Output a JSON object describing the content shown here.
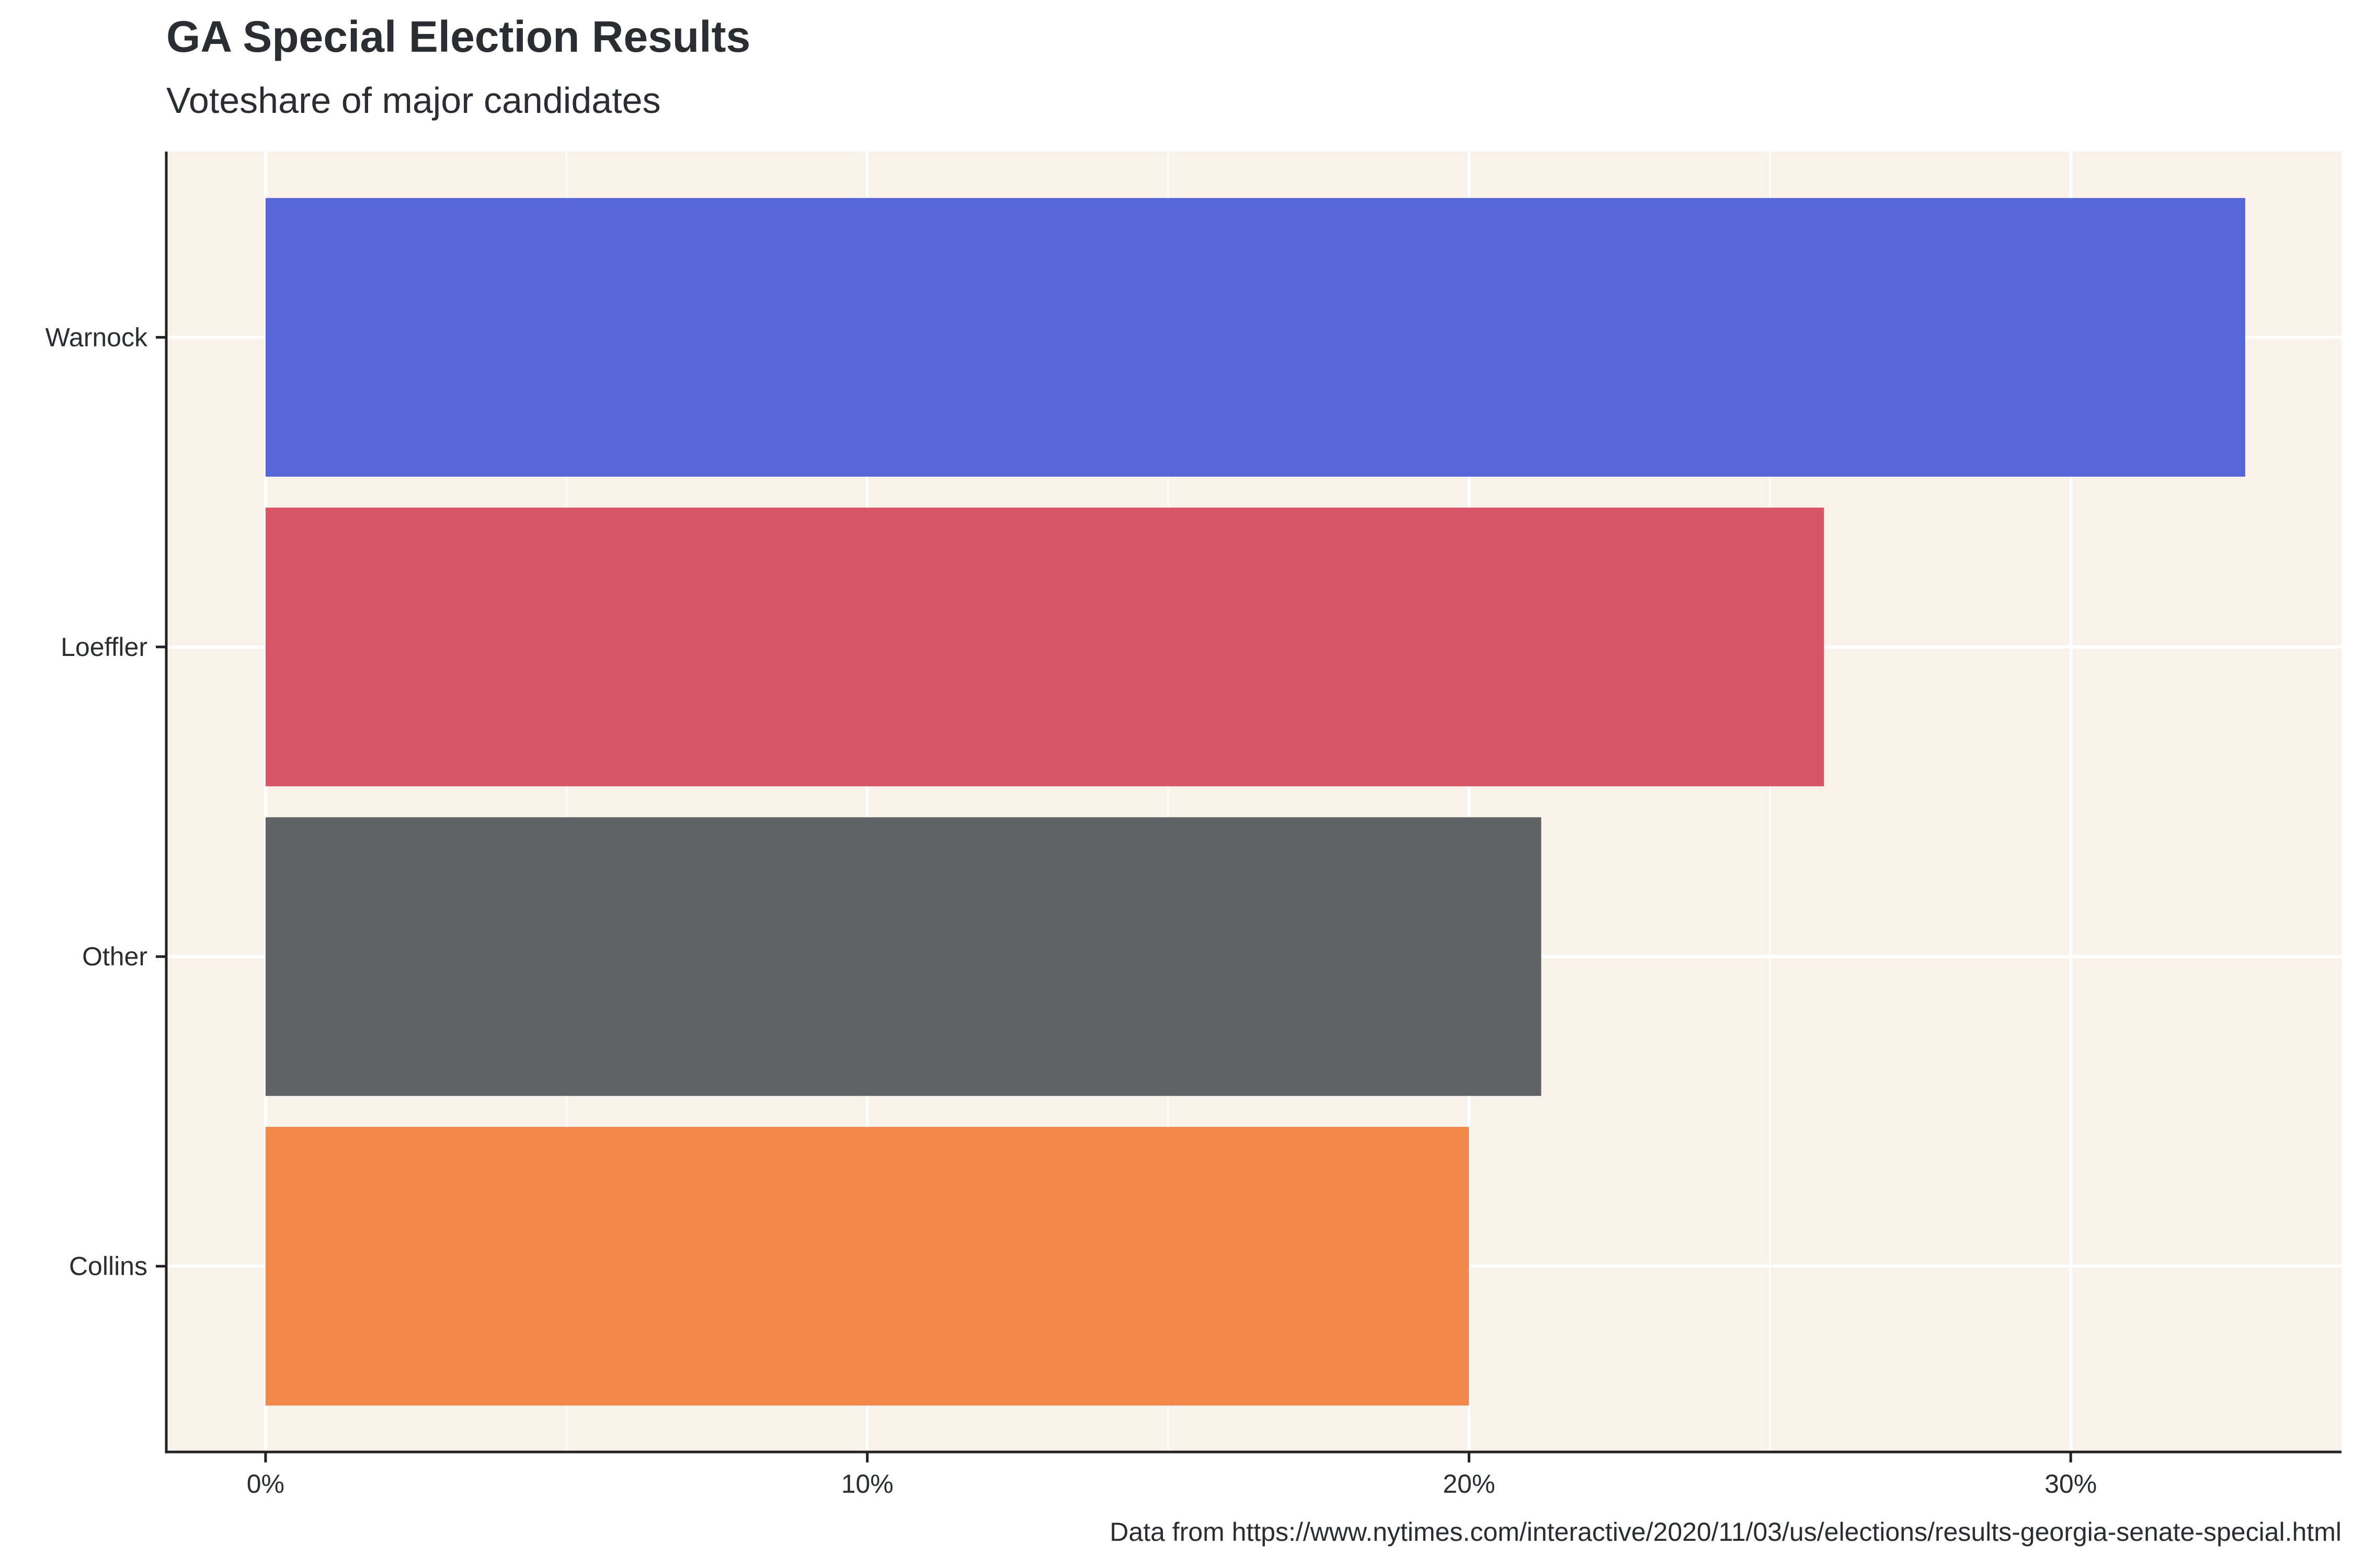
{
  "chart_data": {
    "type": "bar",
    "orientation": "horizontal",
    "title": "GA Special Election Results",
    "subtitle": "Voteshare of major candidates",
    "caption": "Data from https://www.nytimes.com/interactive/2020/11/03/us/elections/results-georgia-senate-special.html",
    "xlabel": "",
    "ylabel": "",
    "categories": [
      "Warnock",
      "Loeffler",
      "Other",
      "Collins"
    ],
    "values": [
      32.9,
      25.9,
      21.2,
      20.0
    ],
    "colors": [
      "#5666d9",
      "#d95668",
      "#606366",
      "#f2894a"
    ],
    "xlim": [
      -1.65,
      34.5
    ],
    "xticks": [
      0,
      10,
      20,
      30
    ],
    "xtick_labels": [
      "0%",
      "10%",
      "20%",
      "30%"
    ],
    "grid": true,
    "legend": "none",
    "panel_background": "#f8f2eb"
  }
}
